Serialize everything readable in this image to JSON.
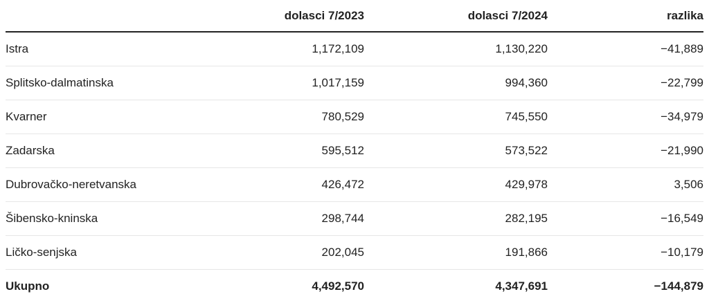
{
  "chart_data": {
    "type": "table",
    "columns": [
      "",
      "dolasci 7/2023",
      "dolasci 7/2024",
      "razlika"
    ],
    "rows": [
      [
        "Istra",
        "1,172,109",
        "1,130,220",
        "−41,889"
      ],
      [
        "Splitsko-dalmatinska",
        "1,017,159",
        "994,360",
        "−22,799"
      ],
      [
        "Kvarner",
        "780,529",
        "745,550",
        "−34,979"
      ],
      [
        "Zadarska",
        "595,512",
        "573,522",
        "−21,990"
      ],
      [
        "Dubrovačko-neretvanska",
        "426,472",
        "429,978",
        "3,506"
      ],
      [
        "Šibensko-kninska",
        "298,744",
        "282,195",
        "−16,549"
      ],
      [
        "Ličko-senjska",
        "202,045",
        "191,866",
        "−10,179"
      ]
    ],
    "total": [
      "Ukupno",
      "4,492,570",
      "4,347,691",
      "−144,879"
    ]
  }
}
